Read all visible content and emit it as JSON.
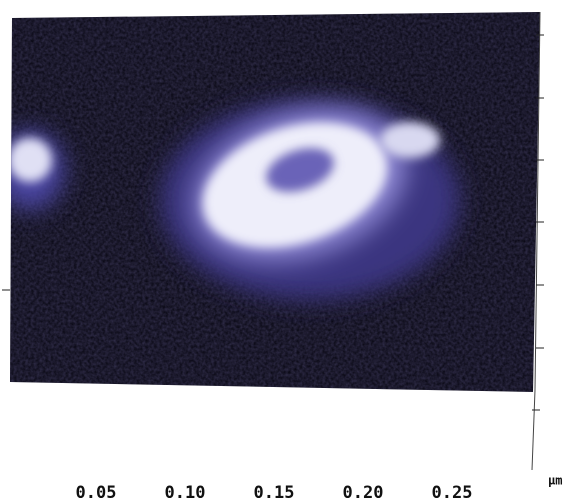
{
  "x_axis": {
    "ticks": [
      "0.05",
      "0.10",
      "0.15",
      "0.20",
      "0.25"
    ],
    "unit": "µm"
  }
}
